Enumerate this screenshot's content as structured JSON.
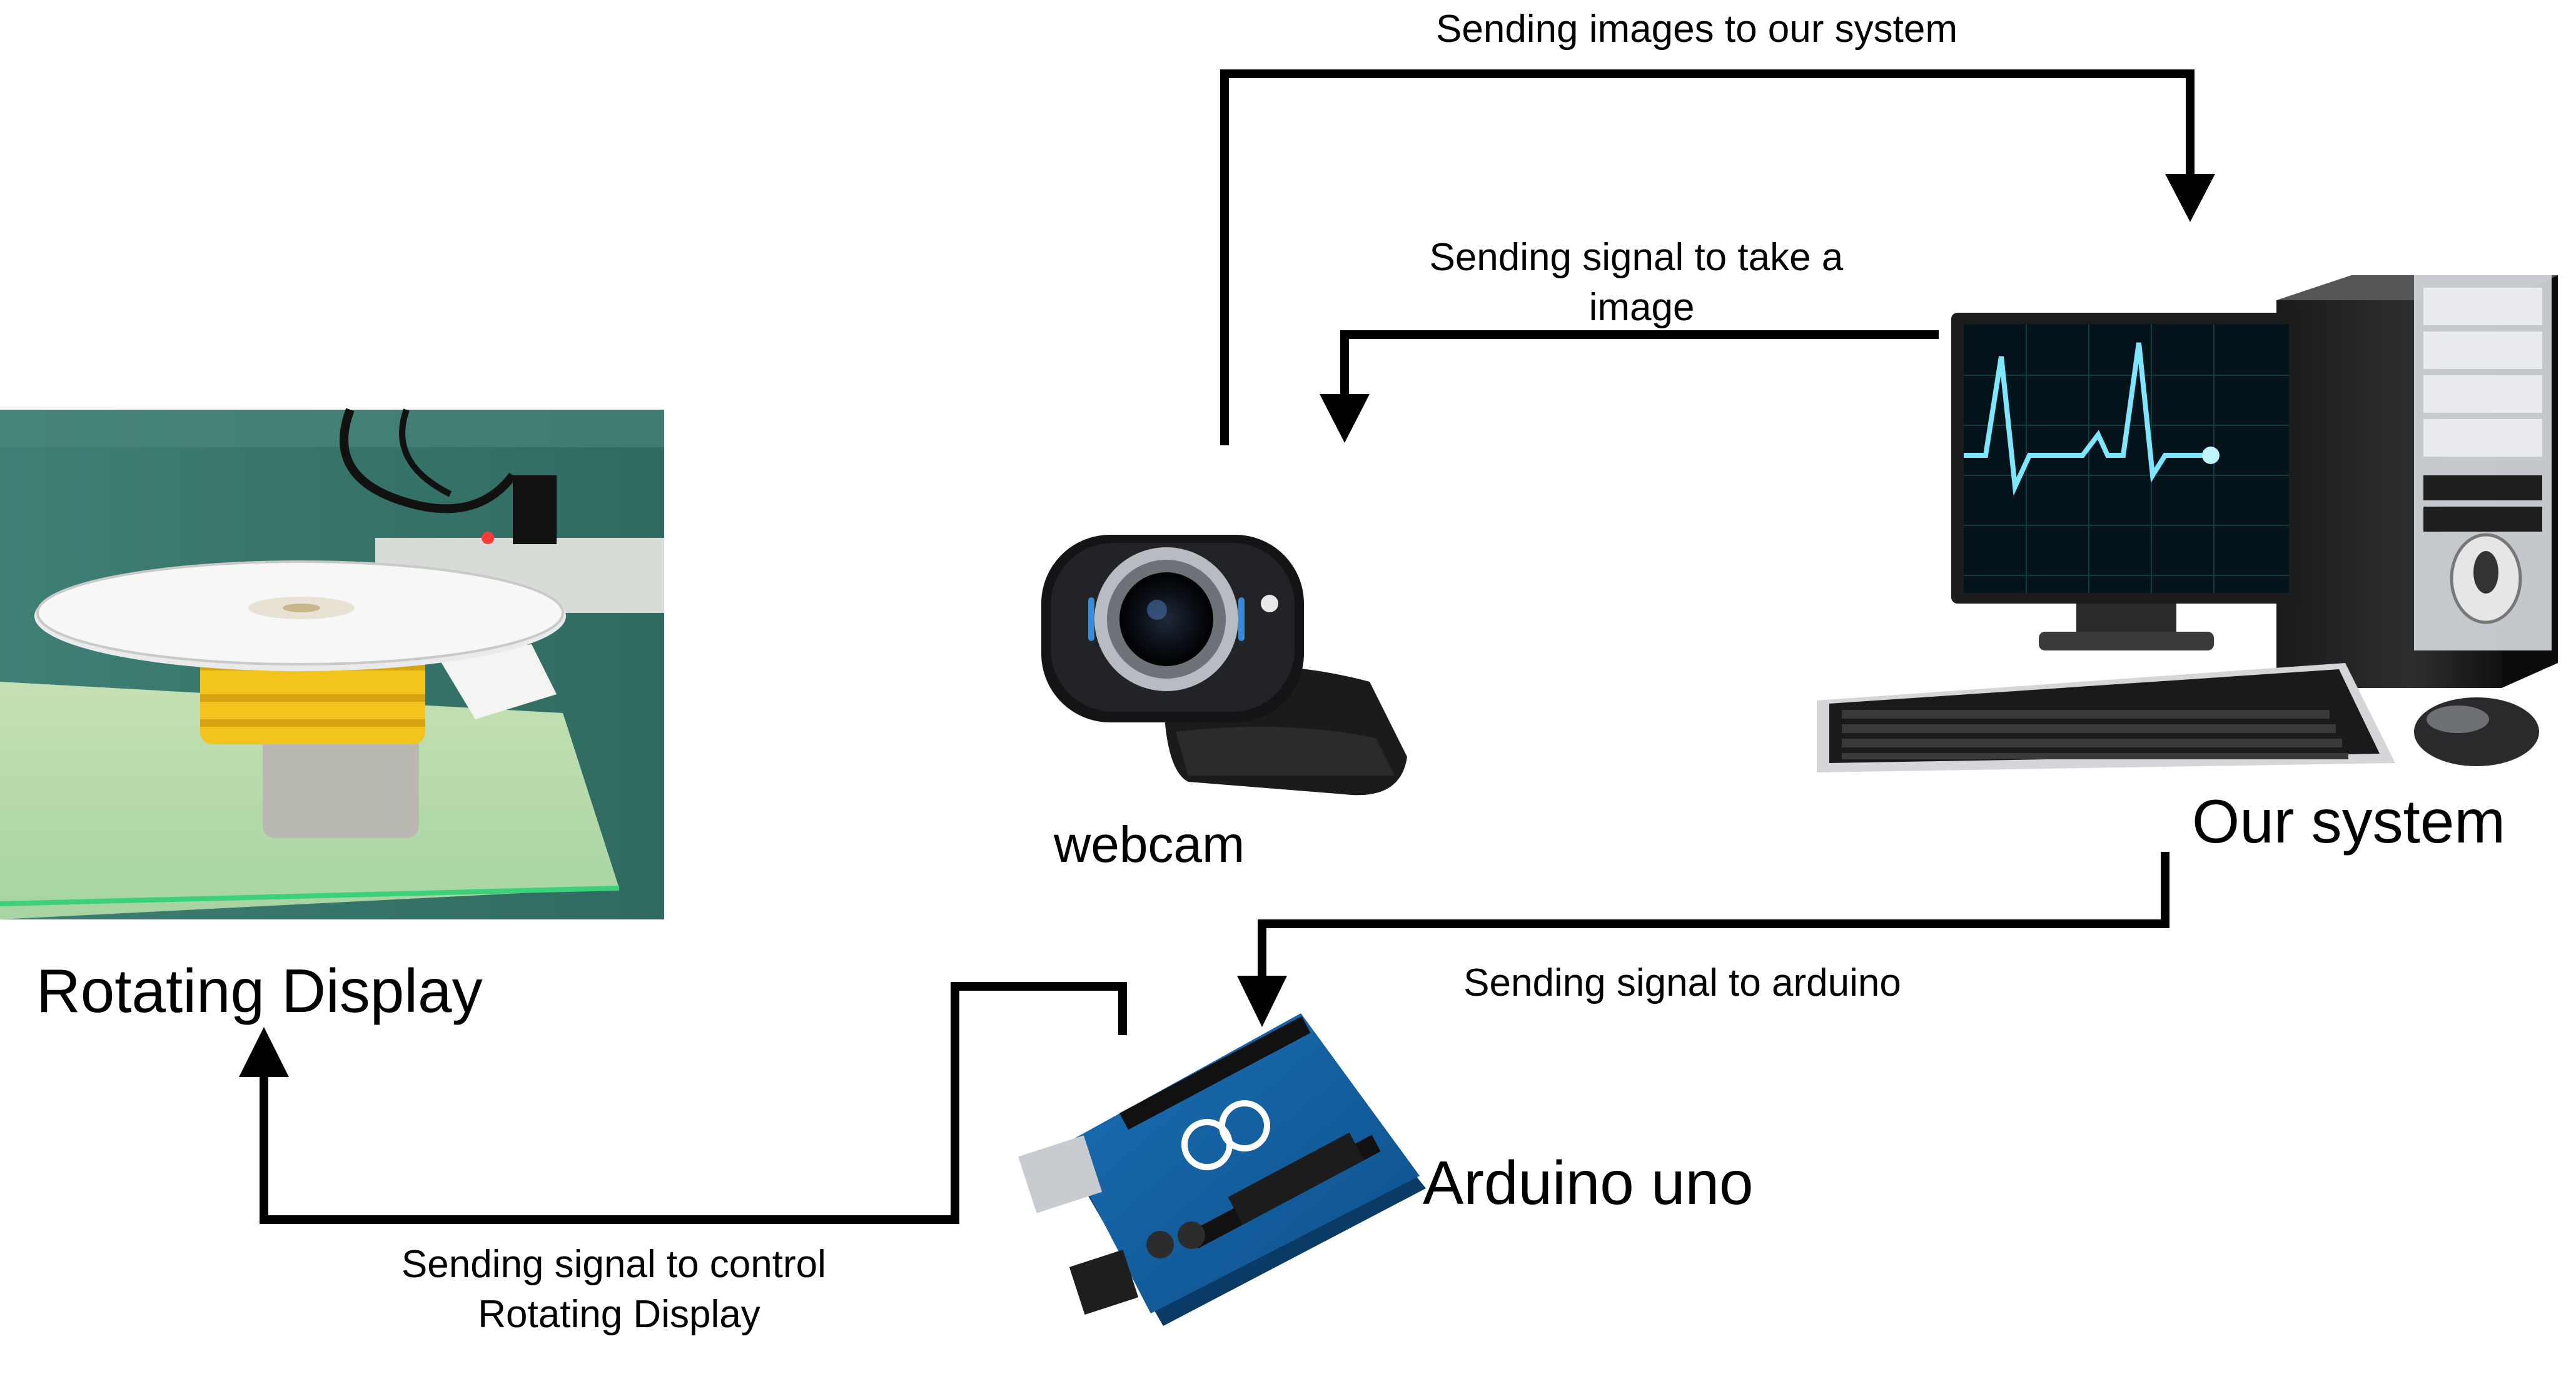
{
  "nodes": {
    "rotating_display": {
      "label": "Rotating Display"
    },
    "webcam": {
      "label": "webcam"
    },
    "system": {
      "label": "Our system"
    },
    "arduino": {
      "label": "Arduino uno"
    }
  },
  "edges": {
    "images_to_system": {
      "label": "Sending images to our system"
    },
    "take_image": {
      "line1": "Sending signal to take a",
      "line2": "image"
    },
    "to_arduino": {
      "label": "Sending signal to arduino"
    },
    "control_display": {
      "line1": "Sending signal to control",
      "line2": "Rotating Display"
    }
  }
}
